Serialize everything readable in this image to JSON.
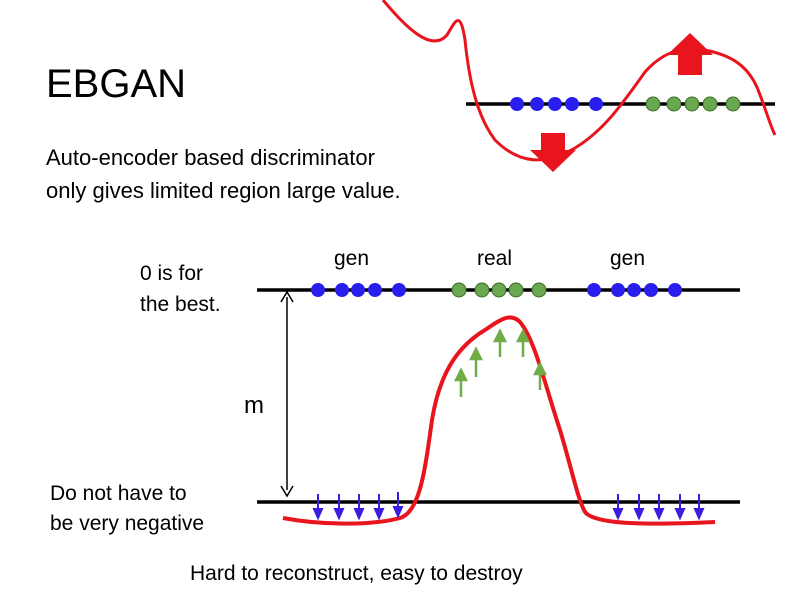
{
  "slide": {
    "title": "EBGAN",
    "subtitle_line1": "Auto-encoder based discriminator",
    "subtitle_line2": "only gives limited region large value.",
    "zero_label_line1": "0 is for",
    "zero_label_line2": "the best.",
    "margin_label": "m",
    "negative_label_line1": "Do not have to",
    "negative_label_line2": "be very negative",
    "gen_label_left": "gen",
    "real_label": "real",
    "gen_label_right": "gen",
    "caption": "Hard to reconstruct, easy to destroy"
  },
  "colors": {
    "curve": "#e8141e",
    "generated_points": "#2a1eef",
    "real_points": "#6aa84f",
    "axis": "#000000",
    "up_arrows": "#70ad47",
    "down_arrows": "#3a1ee0"
  }
}
